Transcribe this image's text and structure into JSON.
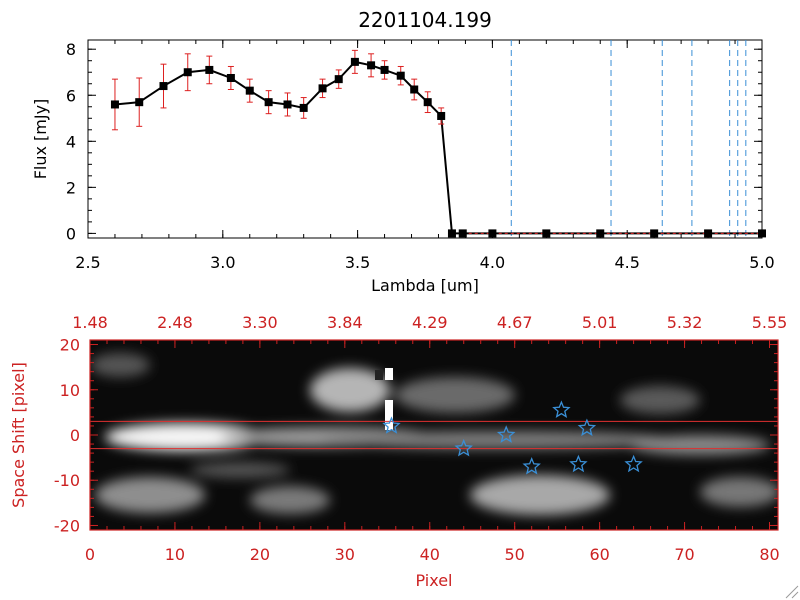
{
  "title": "2201104.199",
  "colors": {
    "axis": "#000000",
    "error": "#dd2020",
    "dashed": "#3a8fd6",
    "red_axis": "#cc2222",
    "star": "#3a8fd6",
    "band": "#e03030"
  },
  "chart_data": [
    {
      "type": "line",
      "title": "2201104.199",
      "xlabel": "Lambda [um]",
      "ylabel": "Flux [mJy]",
      "xlim": [
        2.5,
        5.0
      ],
      "ylim": [
        -0.2,
        8.4
      ],
      "xticks": [
        "2.5",
        "3.0",
        "3.5",
        "4.0",
        "4.5",
        "5.0"
      ],
      "yticks": [
        "0",
        "2",
        "4",
        "6",
        "8"
      ],
      "series": [
        {
          "name": "flux",
          "x": [
            2.6,
            2.69,
            2.78,
            2.87,
            2.95,
            3.03,
            3.1,
            3.17,
            3.24,
            3.3,
            3.37,
            3.43,
            3.49,
            3.55,
            3.6,
            3.66,
            3.71,
            3.76,
            3.81,
            3.85,
            3.89,
            4.0,
            4.2,
            4.4,
            4.6,
            4.8,
            5.0
          ],
          "y": [
            5.6,
            5.7,
            6.4,
            7.0,
            7.1,
            6.75,
            6.2,
            5.7,
            5.6,
            5.45,
            6.3,
            6.7,
            7.45,
            7.3,
            7.1,
            6.85,
            6.25,
            5.7,
            5.1,
            0,
            0,
            0,
            0,
            0,
            0,
            0,
            0
          ],
          "err": [
            1.1,
            1.05,
            0.95,
            0.8,
            0.6,
            0.5,
            0.5,
            0.5,
            0.5,
            0.45,
            0.4,
            0.4,
            0.5,
            0.5,
            0.4,
            0.4,
            0.45,
            0.45,
            0.35,
            0,
            0,
            0,
            0,
            0,
            0,
            0,
            0
          ]
        }
      ],
      "vlines": [
        4.07,
        4.44,
        4.63,
        4.74,
        4.88,
        4.91,
        4.94
      ]
    },
    {
      "type": "heatmap",
      "xlabel": "Pixel",
      "ylabel": "Space Shift [pixel]",
      "xlim": [
        0,
        81
      ],
      "ylim": [
        -21,
        21
      ],
      "xticks": [
        "0",
        "10",
        "20",
        "30",
        "40",
        "50",
        "60",
        "70",
        "80"
      ],
      "yticks": [
        "-20",
        "-10",
        "0",
        "10",
        "20"
      ],
      "top_ticks": [
        "1.48",
        "2.48",
        "3.30",
        "3.84",
        "4.29",
        "4.67",
        "5.01",
        "5.32",
        "5.55"
      ],
      "band": [
        3,
        -3
      ],
      "stars": [
        {
          "x": 35.5,
          "y": 2
        },
        {
          "x": 44,
          "y": -3
        },
        {
          "x": 49,
          "y": 0
        },
        {
          "x": 52,
          "y": -7
        },
        {
          "x": 55.5,
          "y": 5.5
        },
        {
          "x": 57.5,
          "y": -6.5
        },
        {
          "x": 58.5,
          "y": 1.5
        },
        {
          "x": 64,
          "y": -6.5
        }
      ]
    }
  ]
}
